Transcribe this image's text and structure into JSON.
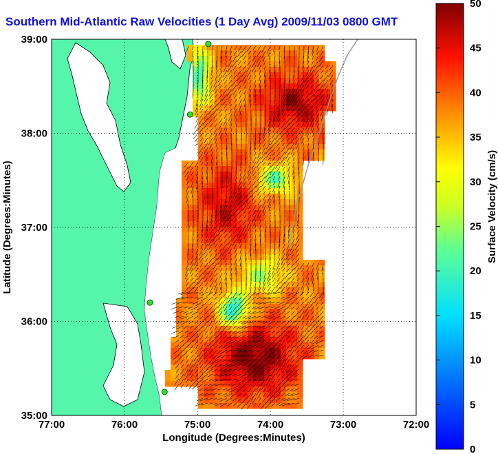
{
  "chart_data": {
    "type": "heatmap",
    "title": "Southern Mid-Atlantic Raw Velocities (1 Day Avg) 2009/11/03 0800 GMT",
    "xlabel": "Longitude (Degrees:Minutes)",
    "ylabel": "Latitude (Degrees:Minutes)",
    "colorbar_label": "Surface Velocity (cm/s)",
    "x_ticks": [
      {
        "value": -77,
        "label": "77:00"
      },
      {
        "value": -76,
        "label": "76:00"
      },
      {
        "value": -75,
        "label": "75:00"
      },
      {
        "value": -74,
        "label": "74:00"
      },
      {
        "value": -73,
        "label": "73:00"
      },
      {
        "value": -72,
        "label": "72:00"
      }
    ],
    "y_ticks": [
      {
        "value": 35,
        "label": "35:00"
      },
      {
        "value": 36,
        "label": "36:00"
      },
      {
        "value": 37,
        "label": "37:00"
      },
      {
        "value": 38,
        "label": "38:00"
      },
      {
        "value": 39,
        "label": "39:00"
      }
    ],
    "xlim": [
      -77,
      -72
    ],
    "ylim": [
      35,
      39
    ],
    "colorbar_ticks": [
      0,
      5,
      10,
      15,
      20,
      25,
      30,
      35,
      40,
      45,
      50
    ],
    "clim": [
      0,
      50
    ],
    "grid": true,
    "colormap": "jet",
    "colors": {
      "land": "#55f5aa",
      "coast": "#000000",
      "title": "#1010e0",
      "station": "#33dd33"
    },
    "stations": [
      {
        "lon": -74.85,
        "lat": 38.95
      },
      {
        "lon": -75.1,
        "lat": 38.2
      },
      {
        "lon": -75.65,
        "lat": 36.2
      },
      {
        "lon": -75.45,
        "lat": 35.25
      }
    ]
  }
}
